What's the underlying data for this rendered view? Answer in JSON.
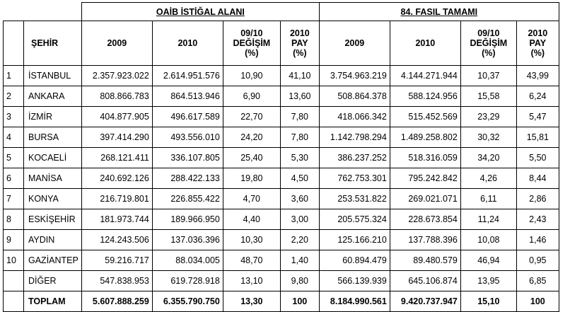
{
  "groups": {
    "oaib": "OAİB İSTİĞAL ALANI",
    "fasil": "84. FASIL TAMAMI"
  },
  "headers": {
    "city": "ŞEHİR",
    "y2009": "2009",
    "y2010": "2010",
    "change": [
      "09/10",
      "DEĞİŞİM",
      "(%)"
    ],
    "share": [
      "2010",
      "PAY",
      "(%)"
    ]
  },
  "rows": [
    {
      "no": "1",
      "city": "İSTANBUL",
      "o2009": "2.357.923.022",
      "o2010": "2.614.951.576",
      "ochg": "10,90",
      "opay": "41,10",
      "f2009": "3.754.963.219",
      "f2010": "4.144.271.944",
      "fchg": "10,37",
      "fpay": "43,99"
    },
    {
      "no": "2",
      "city": "ANKARA",
      "o2009": "808.866.783",
      "o2010": "864.513.946",
      "ochg": "6,90",
      "opay": "13,60",
      "f2009": "508.864.378",
      "f2010": "588.124.956",
      "fchg": "15,58",
      "fpay": "6,24"
    },
    {
      "no": "3",
      "city": "İZMİR",
      "o2009": "404.877.905",
      "o2010": "496.617.589",
      "ochg": "22,70",
      "opay": "7,80",
      "f2009": "418.066.342",
      "f2010": "515.452.569",
      "fchg": "23,29",
      "fpay": "5,47"
    },
    {
      "no": "4",
      "city": "BURSA",
      "o2009": "397.414.290",
      "o2010": "493.556.010",
      "ochg": "24,20",
      "opay": "7,80",
      "f2009": "1.142.798.294",
      "f2010": "1.489.258.802",
      "fchg": "30,32",
      "fpay": "15,81"
    },
    {
      "no": "5",
      "city": "KOCAELİ",
      "o2009": "268.121.411",
      "o2010": "336.107.805",
      "ochg": "25,40",
      "opay": "5,30",
      "f2009": "386.237.252",
      "f2010": "518.316.059",
      "fchg": "34,20",
      "fpay": "5,50"
    },
    {
      "no": "6",
      "city": "MANİSA",
      "o2009": "240.692.126",
      "o2010": "288.422.133",
      "ochg": "19,80",
      "opay": "4,50",
      "f2009": "762.753.301",
      "f2010": "795.242.842",
      "fchg": "4,26",
      "fpay": "8,44"
    },
    {
      "no": "7",
      "city": "KONYA",
      "o2009": "216.719.801",
      "o2010": "226.855.422",
      "ochg": "4,70",
      "opay": "3,60",
      "f2009": "253.531.822",
      "f2010": "269.021.071",
      "fchg": "6,11",
      "fpay": "2,86"
    },
    {
      "no": "8",
      "city": "ESKİŞEHİR",
      "o2009": "181.973.744",
      "o2010": "189.966.950",
      "ochg": "4,40",
      "opay": "3,00",
      "f2009": "205.575.324",
      "f2010": "228.673.854",
      "fchg": "11,24",
      "fpay": "2,43"
    },
    {
      "no": "9",
      "city": "AYDIN",
      "o2009": "124.243.506",
      "o2010": "137.036.396",
      "ochg": "10,30",
      "opay": "2,20",
      "f2009": "125.166.210",
      "f2010": "137.788.396",
      "fchg": "10,08",
      "fpay": "1,46"
    },
    {
      "no": "10",
      "city": "GAZİANTEP",
      "o2009": "59.216.717",
      "o2010": "88.034.005",
      "ochg": "48,70",
      "opay": "1,40",
      "f2009": "60.894.479",
      "f2010": "89.480.579",
      "fchg": "46,94",
      "fpay": "0,95"
    },
    {
      "no": "",
      "city": "DİĞER",
      "o2009": "547.838.953",
      "o2010": "619.728.918",
      "ochg": "13,10",
      "opay": "9,80",
      "f2009": "566.139.939",
      "f2010": "645.106.874",
      "fchg": "13,95",
      "fpay": "6,85"
    }
  ],
  "total": {
    "no": "",
    "city": "TOPLAM",
    "o2009": "5.607.888.259",
    "o2010": "6.355.790.750",
    "ochg": "13,30",
    "opay": "100",
    "f2009": "8.184.990.561",
    "f2010": "9.420.737.947",
    "fchg": "15,10",
    "fpay": "100"
  }
}
